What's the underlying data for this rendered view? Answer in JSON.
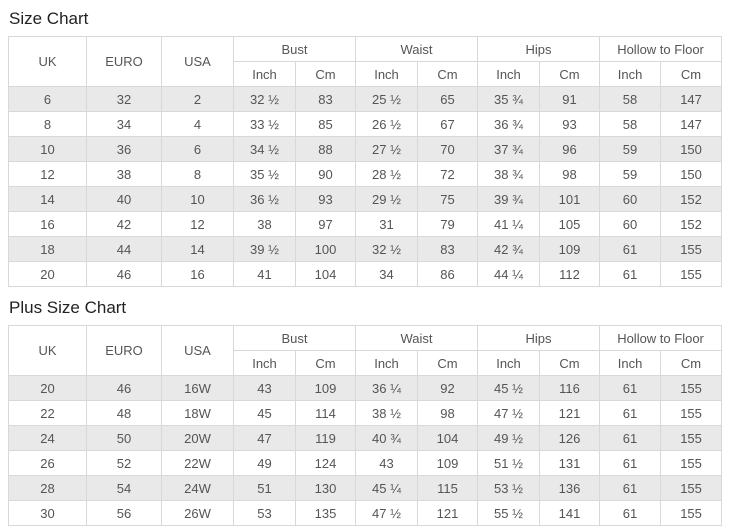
{
  "colors": {
    "stripe": "#e9e9e9",
    "border": "#d8d8d8",
    "cell_text": "#555555",
    "title_text": "#222222"
  },
  "tables": [
    {
      "title": "Size Chart",
      "header": {
        "uk": "UK",
        "euro": "EURO",
        "usa": "USA",
        "groups": [
          "Bust",
          "Waist",
          "Hips",
          "Hollow to Floor"
        ],
        "units": [
          "Inch",
          "Cm"
        ]
      },
      "rows": [
        [
          "6",
          "32",
          "2",
          "32 ½",
          "83",
          "25 ½",
          "65",
          "35 ¾",
          "91",
          "58",
          "147"
        ],
        [
          "8",
          "34",
          "4",
          "33 ½",
          "85",
          "26 ½",
          "67",
          "36 ¾",
          "93",
          "58",
          "147"
        ],
        [
          "10",
          "36",
          "6",
          "34 ½",
          "88",
          "27 ½",
          "70",
          "37 ¾",
          "96",
          "59",
          "150"
        ],
        [
          "12",
          "38",
          "8",
          "35 ½",
          "90",
          "28 ½",
          "72",
          "38 ¾",
          "98",
          "59",
          "150"
        ],
        [
          "14",
          "40",
          "10",
          "36 ½",
          "93",
          "29 ½",
          "75",
          "39 ¾",
          "101",
          "60",
          "152"
        ],
        [
          "16",
          "42",
          "12",
          "38",
          "97",
          "31",
          "79",
          "41 ¼",
          "105",
          "60",
          "152"
        ],
        [
          "18",
          "44",
          "14",
          "39 ½",
          "100",
          "32 ½",
          "83",
          "42 ¾",
          "109",
          "61",
          "155"
        ],
        [
          "20",
          "46",
          "16",
          "41",
          "104",
          "34",
          "86",
          "44 ¼",
          "112",
          "61",
          "155"
        ]
      ]
    },
    {
      "title": "Plus Size Chart",
      "header": {
        "uk": "UK",
        "euro": "EURO",
        "usa": "USA",
        "groups": [
          "Bust",
          "Waist",
          "Hips",
          "Hollow to Floor"
        ],
        "units": [
          "Inch",
          "Cm"
        ]
      },
      "rows": [
        [
          "20",
          "46",
          "16W",
          "43",
          "109",
          "36 ¼",
          "92",
          "45 ½",
          "116",
          "61",
          "155"
        ],
        [
          "22",
          "48",
          "18W",
          "45",
          "114",
          "38 ½",
          "98",
          "47 ½",
          "121",
          "61",
          "155"
        ],
        [
          "24",
          "50",
          "20W",
          "47",
          "119",
          "40 ¾",
          "104",
          "49 ½",
          "126",
          "61",
          "155"
        ],
        [
          "26",
          "52",
          "22W",
          "49",
          "124",
          "43",
          "109",
          "51 ½",
          "131",
          "61",
          "155"
        ],
        [
          "28",
          "54",
          "24W",
          "51",
          "130",
          "45 ¼",
          "115",
          "53 ½",
          "136",
          "61",
          "155"
        ],
        [
          "30",
          "56",
          "26W",
          "53",
          "135",
          "47 ½",
          "121",
          "55 ½",
          "141",
          "61",
          "155"
        ]
      ]
    }
  ]
}
